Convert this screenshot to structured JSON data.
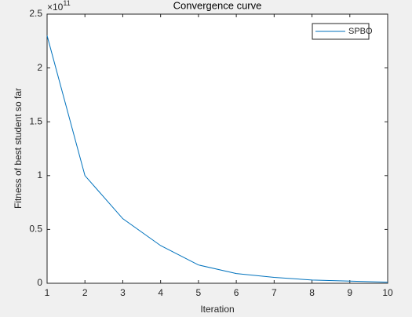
{
  "chart_data": {
    "type": "line",
    "title": "Convergence curve",
    "xlabel": "Iteration",
    "ylabel": "Fitness of best student so far",
    "y_multiplier_base": "×10",
    "y_multiplier_exponent": "11",
    "x": [
      1,
      2,
      3,
      4,
      5,
      6,
      7,
      8,
      9,
      10
    ],
    "series": [
      {
        "name": "SPBO",
        "color": "#0072bd",
        "values": [
          2.3,
          1.0,
          0.6,
          0.35,
          0.17,
          0.09,
          0.055,
          0.03,
          0.02,
          0.01
        ]
      }
    ],
    "xlim": [
      1,
      10
    ],
    "xticks": [
      1,
      2,
      3,
      4,
      5,
      6,
      7,
      8,
      9,
      10
    ],
    "ylim": [
      0,
      2.5
    ],
    "yticks": [
      0,
      0.5,
      1,
      1.5,
      2,
      2.5
    ],
    "grid": false,
    "legend": "top-right"
  }
}
